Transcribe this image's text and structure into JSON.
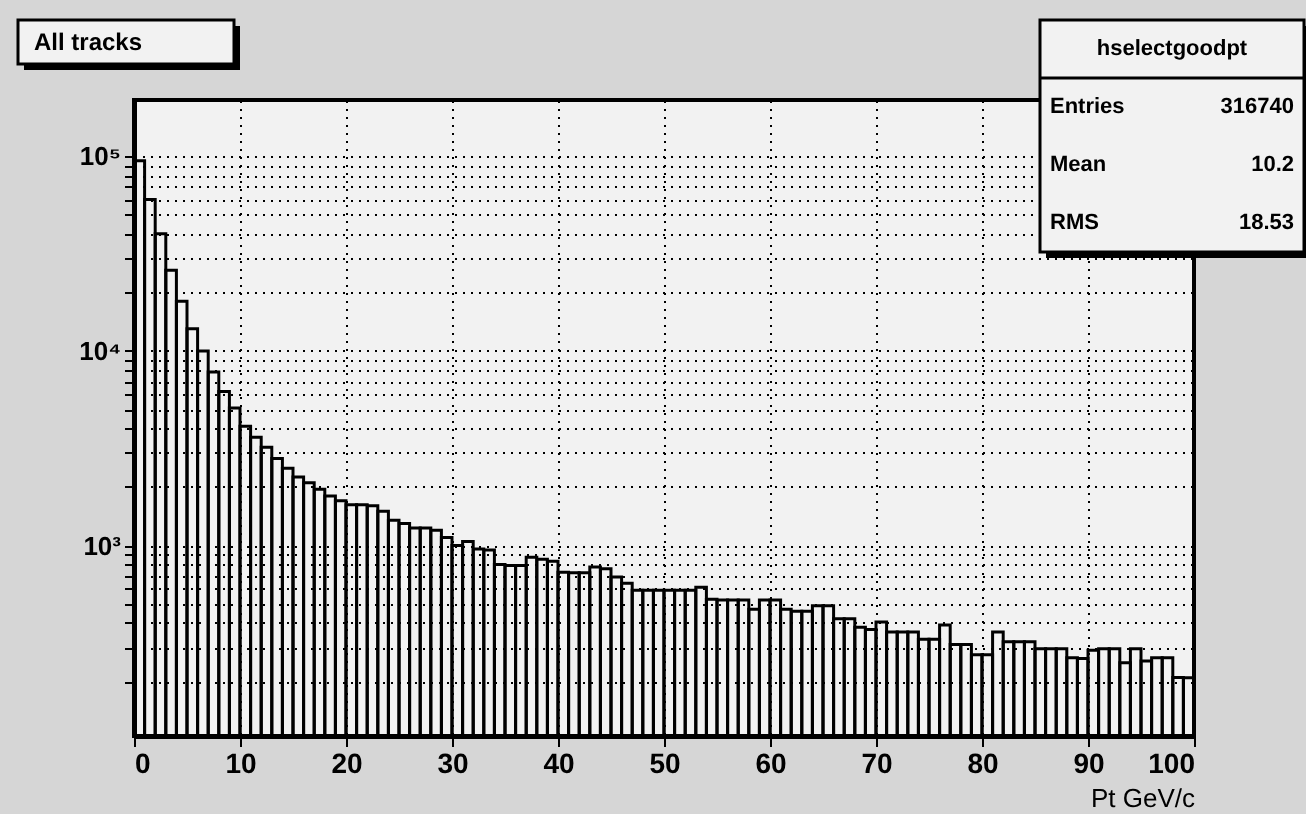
{
  "chart_data": {
    "type": "histogram",
    "title": "All tracks",
    "xlabel": "Pt  GeV/c",
    "annotations": [
      "hselectgoodpt",
      "Entries 316740",
      "Mean 10.2",
      "RMS 18.53"
    ],
    "bins": [
      0,
      1,
      2,
      3,
      4,
      5,
      6,
      7,
      8,
      9,
      10,
      11,
      12,
      13,
      14,
      15,
      16,
      17,
      18,
      19,
      20,
      21,
      22,
      23,
      24,
      25,
      26,
      27,
      28,
      29,
      30,
      31,
      32,
      33,
      34,
      35,
      36,
      37,
      38,
      39,
      40,
      41,
      42,
      43,
      44,
      45,
      46,
      47,
      48,
      49,
      50,
      51,
      52,
      53,
      54,
      55,
      56,
      57,
      58,
      59,
      60,
      61,
      62,
      63,
      64,
      65,
      66,
      67,
      68,
      69,
      70,
      71,
      72,
      73,
      74,
      75,
      76,
      77,
      78,
      79,
      80,
      81,
      82,
      83,
      84,
      85,
      86,
      87,
      88,
      89,
      90,
      91,
      92,
      93,
      94,
      95,
      96,
      97,
      98,
      99,
      100
    ],
    "values": [
      95000,
      60000,
      40000,
      26000,
      18000,
      13000,
      10000,
      7800,
      6200,
      5100,
      4100,
      3600,
      3200,
      2800,
      2500,
      2250,
      2100,
      1950,
      1800,
      1700,
      1620,
      1620,
      1600,
      1500,
      1350,
      1300,
      1230,
      1230,
      1200,
      1100,
      1000,
      1050,
      960,
      950,
      800,
      790,
      790,
      870,
      850,
      830,
      730,
      725,
      725,
      775,
      760,
      690,
      640,
      590,
      590,
      590,
      590,
      590,
      590,
      610,
      530,
      525,
      525,
      525,
      470,
      525,
      525,
      470,
      460,
      460,
      490,
      490,
      420,
      420,
      380,
      370,
      405,
      360,
      360,
      360,
      330,
      330,
      390,
      310,
      310,
      275,
      275,
      360,
      320,
      320,
      320,
      295,
      295,
      295,
      265,
      263,
      290,
      295,
      295,
      250,
      295,
      255,
      265,
      265,
      210,
      209
    ],
    "color": "#000000",
    "log": true,
    "grid": true,
    "xlim": [
      0,
      100
    ],
    "xticks": [
      0,
      10,
      20,
      30,
      40,
      50,
      60,
      70,
      80,
      90,
      100
    ],
    "ylim": [
      105,
      195000
    ],
    "yticks": [
      {
        "value": 200,
        "label": null
      },
      {
        "value": 300,
        "label": null
      },
      {
        "value": 400,
        "label": null
      },
      {
        "value": 500,
        "label": null
      },
      {
        "value": 600,
        "label": null
      },
      {
        "value": 700,
        "label": null
      },
      {
        "value": 800,
        "label": null
      },
      {
        "value": 900,
        "label": null
      },
      {
        "value": 1000,
        "label": "10³"
      },
      {
        "value": 2000,
        "label": null
      },
      {
        "value": 3000,
        "label": null
      },
      {
        "value": 4000,
        "label": null
      },
      {
        "value": 5000,
        "label": null
      },
      {
        "value": 6000,
        "label": null
      },
      {
        "value": 7000,
        "label": null
      },
      {
        "value": 8000,
        "label": null
      },
      {
        "value": 9000,
        "label": null
      },
      {
        "value": 10000,
        "label": "10⁴"
      },
      {
        "value": 20000,
        "label": null
      },
      {
        "value": 30000,
        "label": null
      },
      {
        "value": 40000,
        "label": null
      },
      {
        "value": 50000,
        "label": null
      },
      {
        "value": 60000,
        "label": null
      },
      {
        "value": 70000,
        "label": null
      },
      {
        "value": 80000,
        "label": null
      },
      {
        "value": 90000,
        "label": null
      },
      {
        "value": 100000,
        "label": "10⁵"
      }
    ]
  }
}
